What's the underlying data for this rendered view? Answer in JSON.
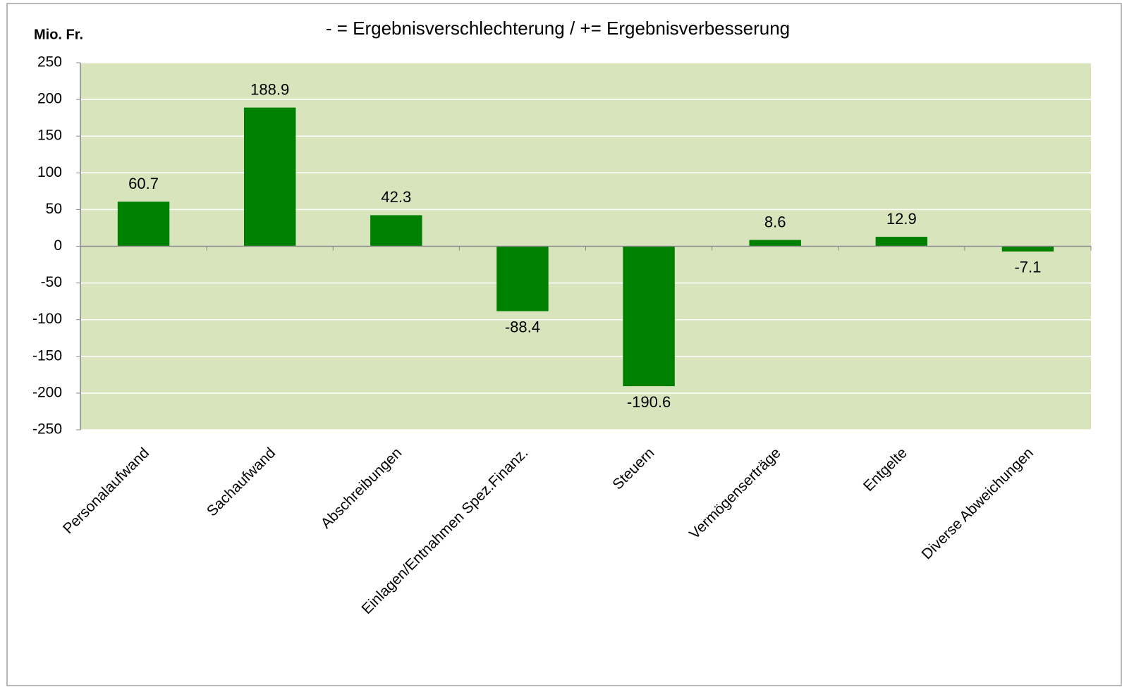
{
  "chart_data": {
    "type": "bar",
    "title": "- = Ergebnisverschlechterung / += Ergebnisverbesserung",
    "y_label": "Mio. Fr.",
    "categories": [
      "Personalaufwand",
      "Sachaufwand",
      "Abschreibungen",
      "Einlagen/Entnahmen Spez.Finanz.",
      "Steuern",
      "Vermögenserträge",
      "Entgelte",
      "Diverse  Abweichungen"
    ],
    "values": [
      60.7,
      188.9,
      42.3,
      -88.4,
      -190.6,
      8.6,
      12.9,
      -7.1
    ],
    "color": "#008000",
    "ylim": [
      -250,
      250
    ],
    "yticks": [
      -250,
      -200,
      -150,
      -100,
      -50,
      0,
      50,
      100,
      150,
      200,
      250
    ],
    "grid": true
  }
}
